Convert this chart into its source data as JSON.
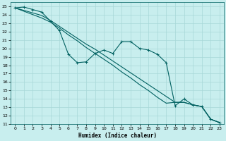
{
  "xlabel": "Humidex (Indice chaleur)",
  "background_color": "#c8eeee",
  "grid_color": "#a8d8d8",
  "line_color": "#006060",
  "xlim": [
    -0.5,
    23.5
  ],
  "ylim": [
    11,
    25.5
  ],
  "xticks": [
    0,
    1,
    2,
    3,
    4,
    5,
    6,
    7,
    8,
    9,
    10,
    11,
    12,
    13,
    14,
    15,
    16,
    17,
    18,
    19,
    20,
    21,
    22,
    23
  ],
  "yticks": [
    11,
    12,
    13,
    14,
    15,
    16,
    17,
    18,
    19,
    20,
    21,
    22,
    23,
    24,
    25
  ],
  "line_irregular_x": [
    0,
    1,
    2,
    3,
    4,
    5,
    6,
    7,
    8,
    9,
    10,
    11,
    12,
    13,
    14,
    15,
    16,
    17,
    18,
    19,
    20,
    21,
    22,
    23
  ],
  "line_irregular_y": [
    24.8,
    24.9,
    24.6,
    24.3,
    23.2,
    22.1,
    19.3,
    18.3,
    18.4,
    19.4,
    19.8,
    19.4,
    20.8,
    20.8,
    20.0,
    19.8,
    19.3,
    18.3,
    13.2,
    14.0,
    13.3,
    13.1,
    11.6,
    11.2
  ],
  "line_straight1_x": [
    0,
    1,
    2,
    3,
    4,
    5,
    6,
    7,
    8,
    9,
    10,
    11,
    12,
    13,
    14,
    15,
    16,
    17,
    18,
    19,
    20,
    21,
    22,
    23
  ],
  "line_straight1_y": [
    24.8,
    24.5,
    24.2,
    23.9,
    23.3,
    22.6,
    21.9,
    21.2,
    20.5,
    19.9,
    19.2,
    18.5,
    17.8,
    17.1,
    16.4,
    15.7,
    15.0,
    14.3,
    13.6,
    13.6,
    13.3,
    13.1,
    11.6,
    11.2
  ],
  "line_straight2_x": [
    0,
    1,
    2,
    3,
    4,
    5,
    6,
    7,
    8,
    9,
    10,
    11,
    12,
    13,
    14,
    15,
    16,
    17,
    18,
    19,
    20,
    21,
    22,
    23
  ],
  "line_straight2_y": [
    24.8,
    24.4,
    24.0,
    23.6,
    23.1,
    22.4,
    21.6,
    20.9,
    20.1,
    19.4,
    18.7,
    18.0,
    17.2,
    16.5,
    15.7,
    15.0,
    14.2,
    13.5,
    13.6,
    13.6,
    13.3,
    13.1,
    11.6,
    11.2
  ]
}
